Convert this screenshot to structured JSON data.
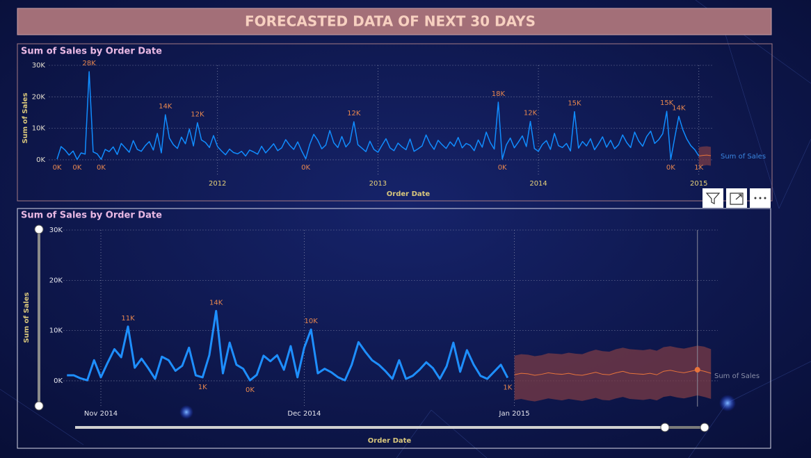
{
  "header": {
    "title": "FORECASTED DATA OF NEXT 30 DAYS"
  },
  "chart_data": [
    {
      "type": "line",
      "title": "Sum of Sales by Order Date",
      "x_label": "Order Date",
      "y_label": "Sum of Sales",
      "x": [
        2011,
        2011.025,
        2011.05,
        2011.075,
        2011.1,
        2011.125,
        2011.15,
        2011.175,
        2011.2,
        2011.225,
        2011.25,
        2011.275,
        2011.3,
        2011.325,
        2011.35,
        2011.375,
        2011.4,
        2011.425,
        2011.45,
        2011.475,
        2011.5,
        2011.525,
        2011.55,
        2011.575,
        2011.6,
        2011.625,
        2011.65,
        2011.675,
        2011.7,
        2011.725,
        2011.75,
        2011.775,
        2011.8,
        2011.825,
        2011.85,
        2011.875,
        2011.9,
        2011.925,
        2011.95,
        2011.975,
        2012,
        2012.025,
        2012.05,
        2012.075,
        2012.1,
        2012.125,
        2012.15,
        2012.175,
        2012.2,
        2012.225,
        2012.25,
        2012.275,
        2012.3,
        2012.325,
        2012.35,
        2012.375,
        2012.4,
        2012.425,
        2012.45,
        2012.475,
        2012.5,
        2012.525,
        2012.55,
        2012.575,
        2012.6,
        2012.625,
        2012.65,
        2012.675,
        2012.7,
        2012.725,
        2012.75,
        2012.775,
        2012.8,
        2012.825,
        2012.85,
        2012.875,
        2012.9,
        2012.925,
        2012.95,
        2012.975,
        2013,
        2013.025,
        2013.05,
        2013.075,
        2013.1,
        2013.125,
        2013.15,
        2013.175,
        2013.2,
        2013.225,
        2013.25,
        2013.275,
        2013.3,
        2013.325,
        2013.35,
        2013.375,
        2013.4,
        2013.425,
        2013.45,
        2013.475,
        2013.5,
        2013.525,
        2013.55,
        2013.575,
        2013.6,
        2013.625,
        2013.65,
        2013.675,
        2013.7,
        2013.725,
        2013.75,
        2013.775,
        2013.8,
        2013.825,
        2013.85,
        2013.875,
        2013.9,
        2013.925,
        2013.95,
        2013.975,
        2014,
        2014.025,
        2014.05,
        2014.075,
        2014.1,
        2014.125,
        2014.15,
        2014.175,
        2014.2,
        2014.225,
        2014.25,
        2014.275,
        2014.3,
        2014.325,
        2014.35,
        2014.375,
        2014.4,
        2014.425,
        2014.45,
        2014.475,
        2014.5,
        2014.525,
        2014.55,
        2014.575,
        2014.6,
        2014.625,
        2014.65,
        2014.675,
        2014.7,
        2014.725,
        2014.75,
        2014.775,
        2014.8,
        2014.825,
        2014.85,
        2014.875,
        2014.9,
        2014.925,
        2014.95,
        2014.975,
        2015
      ],
      "xlim": [
        2010.95,
        2015.09
      ],
      "xticks": [
        2012,
        2013,
        2014,
        2015
      ],
      "ylim": [
        -2000,
        31000
      ],
      "yticks": [
        {
          "value": 0,
          "label": "0K"
        },
        {
          "value": 10000,
          "label": "10K"
        },
        {
          "value": 20000,
          "label": "20K"
        },
        {
          "value": 30000,
          "label": "30K"
        }
      ],
      "grid": true,
      "legend_color": "#3a86e0",
      "series": [
        {
          "name": "Sum of Sales",
          "color": "#118dff",
          "values": [
            200,
            4200,
            3100,
            1500,
            2800,
            100,
            2200,
            1800,
            28000,
            2500,
            1900,
            150,
            3300,
            2600,
            4100,
            1700,
            5200,
            3800,
            2400,
            6100,
            3300,
            2700,
            4500,
            5800,
            3100,
            8400,
            2200,
            14300,
            6900,
            4800,
            3600,
            7200,
            5100,
            9800,
            4400,
            11800,
            6300,
            5500,
            3900,
            7700,
            4200,
            2800,
            1600,
            3400,
            2300,
            1900,
            2700,
            1200,
            3100,
            2500,
            1800,
            4300,
            2200,
            3600,
            5100,
            2900,
            3800,
            6400,
            4600,
            3300,
            5700,
            2800,
            300,
            4900,
            8100,
            6200,
            3500,
            4700,
            9300,
            5400,
            3900,
            7400,
            4100,
            5600,
            12100,
            4800,
            3700,
            2600,
            5900,
            3300,
            2400,
            4600,
            6700,
            3800,
            2900,
            5300,
            4100,
            3200,
            6600,
            2700,
            3500,
            4400,
            7900,
            5100,
            3300,
            6200,
            4800,
            3600,
            5700,
            4300,
            7100,
            3800,
            5200,
            4600,
            2900,
            6300,
            4000,
            8800,
            5500,
            3400,
            18300,
            200,
            4700,
            6900,
            3800,
            5600,
            7600,
            4200,
            12200,
            3600,
            2700,
            4900,
            6100,
            3300,
            8400,
            4500,
            3900,
            5200,
            2800,
            15300,
            3700,
            5800,
            4400,
            6700,
            3200,
            5100,
            7300,
            4000,
            6200,
            3500,
            4800,
            7900,
            5500,
            3900,
            8800,
            6000,
            4300,
            7400,
            9100,
            5200,
            6400,
            8300,
            15400,
            100,
            7100,
            13800,
            9600,
            6600,
            4500,
            3200,
            1200
          ],
          "value_labels": [
            "0K",
            null,
            null,
            null,
            null,
            "0K",
            null,
            null,
            "28K",
            null,
            null,
            "0K",
            null,
            null,
            null,
            null,
            null,
            null,
            null,
            null,
            null,
            null,
            null,
            null,
            null,
            null,
            null,
            "14K",
            null,
            null,
            null,
            null,
            null,
            null,
            null,
            "12K",
            null,
            null,
            null,
            null,
            null,
            null,
            null,
            null,
            null,
            null,
            null,
            null,
            null,
            null,
            null,
            null,
            null,
            null,
            null,
            null,
            null,
            null,
            null,
            null,
            null,
            null,
            "0K",
            null,
            null,
            null,
            null,
            null,
            null,
            null,
            null,
            null,
            null,
            null,
            "12K",
            null,
            null,
            null,
            null,
            null,
            null,
            null,
            null,
            null,
            null,
            null,
            null,
            null,
            null,
            null,
            null,
            null,
            null,
            null,
            null,
            null,
            null,
            null,
            null,
            null,
            null,
            null,
            null,
            null,
            null,
            null,
            null,
            null,
            null,
            null,
            "18K",
            "0K",
            null,
            null,
            null,
            null,
            null,
            null,
            "12K",
            null,
            null,
            null,
            null,
            null,
            null,
            null,
            null,
            null,
            null,
            "15K",
            null,
            null,
            null,
            null,
            null,
            null,
            null,
            null,
            null,
            null,
            null,
            null,
            null,
            null,
            null,
            null,
            null,
            null,
            null,
            null,
            null,
            null,
            "15K",
            "0K",
            null,
            "14K",
            null,
            null,
            null,
            null,
            "1K"
          ]
        }
      ],
      "forecast": {
        "color": "#e8743b",
        "band_color": "#7a3b45",
        "x": [
          2015,
          2015.025,
          2015.05,
          2015.075
        ],
        "values": [
          1200,
          1400,
          1500,
          1300
        ],
        "lower": [
          -1800,
          -1900,
          -1700,
          -1900
        ],
        "upper": [
          4000,
          4200,
          4300,
          4100
        ]
      }
    },
    {
      "type": "line",
      "title": "Sum of Sales by Order Date",
      "x_label": "Order Date",
      "y_label": "Sum of Sales",
      "x": [
        -5,
        -4,
        -3,
        -2,
        -1,
        0,
        1,
        2,
        3,
        4,
        5,
        6,
        7,
        8,
        9,
        10,
        11,
        12,
        13,
        14,
        15,
        16,
        17,
        18,
        19,
        20,
        21,
        22,
        23,
        24,
        25,
        26,
        27,
        28,
        29,
        30,
        31,
        32,
        33,
        34,
        35,
        36,
        37,
        38,
        39,
        40,
        41,
        42,
        43,
        44,
        45,
        46,
        47,
        48,
        49,
        50,
        51,
        52,
        53,
        54,
        55,
        56,
        57,
        58,
        59,
        60
      ],
      "xlim": [
        -5.5,
        91
      ],
      "xticks": [
        {
          "value": 0,
          "label": "Nov 2014"
        },
        {
          "value": 30,
          "label": "Dec 2014"
        },
        {
          "value": 61,
          "label": "Jan 2015"
        }
      ],
      "ylim": [
        -4500,
        31000
      ],
      "yticks": [
        {
          "value": 0,
          "label": "0K"
        },
        {
          "value": 10000,
          "label": "10K"
        },
        {
          "value": 20000,
          "label": "20K"
        },
        {
          "value": 30000,
          "label": "30K"
        }
      ],
      "grid": true,
      "legend_color": "#8a8fa8",
      "series": [
        {
          "name": "Sum of Sales",
          "color": "#1e8fff",
          "values": [
            1100,
            1100,
            500,
            100,
            4100,
            700,
            3600,
            6300,
            4700,
            10800,
            2600,
            4400,
            2500,
            400,
            4800,
            4100,
            2000,
            3000,
            6600,
            1100,
            700,
            5100,
            13900,
            1500,
            7600,
            3200,
            2400,
            100,
            1200,
            5000,
            3900,
            5100,
            2200,
            6900,
            700,
            6600,
            10200,
            1500,
            2400,
            1700,
            700,
            100,
            3200,
            7700,
            5800,
            4100,
            3200,
            1900,
            400,
            4100,
            400,
            1000,
            2200,
            3700,
            2500,
            400,
            2900,
            7600,
            1800,
            6100,
            3200,
            1000,
            400,
            1800,
            3200,
            600
          ],
          "value_labels": [
            null,
            null,
            null,
            null,
            null,
            null,
            null,
            null,
            null,
            "11K",
            null,
            null,
            null,
            null,
            null,
            null,
            null,
            null,
            null,
            null,
            "1K",
            null,
            "14K",
            null,
            null,
            null,
            null,
            "0K",
            null,
            null,
            null,
            null,
            null,
            null,
            null,
            null,
            "10K",
            null,
            null,
            null,
            null,
            null,
            null,
            null,
            null,
            null,
            null,
            null,
            null,
            null,
            null,
            null,
            null,
            null,
            null,
            null,
            null,
            null,
            null,
            null,
            null,
            null,
            null,
            null,
            null,
            "1K"
          ]
        }
      ],
      "forecast": {
        "color": "#e8743b",
        "band_color": "#7a3b45",
        "highlight_x": 88,
        "x": [
          61,
          62,
          63,
          64,
          65,
          66,
          67,
          68,
          69,
          70,
          71,
          72,
          73,
          74,
          75,
          76,
          77,
          78,
          79,
          80,
          81,
          82,
          83,
          84,
          85,
          86,
          87,
          88,
          89,
          90
        ],
        "values": [
          1200,
          1500,
          1400,
          1100,
          1300,
          1600,
          1400,
          1300,
          1500,
          1200,
          1100,
          1400,
          1700,
          1300,
          1200,
          1600,
          1900,
          1500,
          1400,
          1300,
          1500,
          1200,
          1900,
          2100,
          1800,
          1600,
          1900,
          2200,
          1900,
          1500
        ],
        "lower": [
          -3800,
          -3600,
          -3900,
          -4100,
          -3800,
          -3500,
          -3700,
          -3900,
          -3600,
          -3800,
          -4000,
          -3700,
          -3400,
          -3800,
          -3900,
          -3500,
          -3200,
          -3600,
          -3700,
          -3800,
          -3600,
          -3900,
          -3200,
          -3000,
          -3300,
          -3500,
          -3200,
          -2900,
          -3200,
          -3600
        ],
        "upper": [
          5000,
          5300,
          5200,
          4900,
          5100,
          5500,
          5400,
          5300,
          5600,
          5400,
          5300,
          5800,
          6200,
          5900,
          5800,
          6300,
          6600,
          6300,
          6200,
          6100,
          6300,
          6000,
          6700,
          6900,
          6600,
          6400,
          6700,
          7000,
          6800,
          6300
        ]
      }
    }
  ]
}
